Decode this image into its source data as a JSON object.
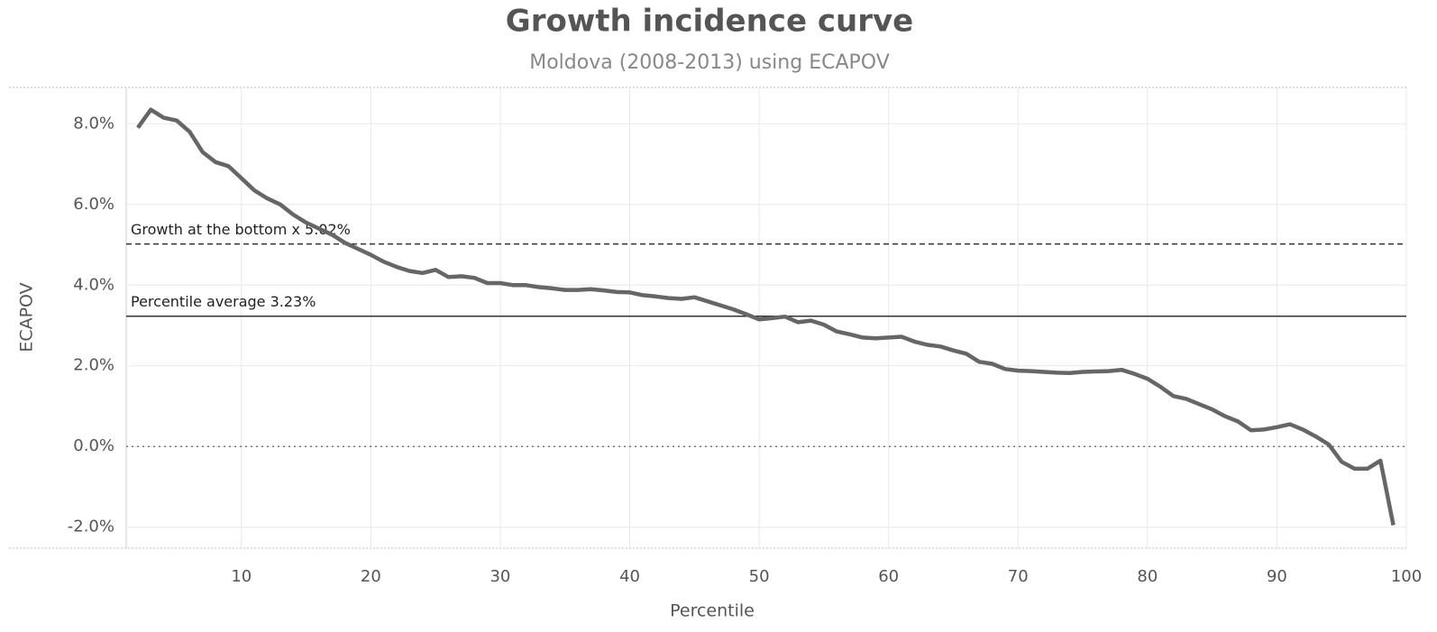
{
  "chart_data": {
    "type": "line",
    "title": "Growth incidence curve",
    "subtitle": "Moldova (2008-2013) using ECAPOV",
    "x_label": "Percentile",
    "y_label": "ECAPOV",
    "color": "#666666",
    "grid": true,
    "x": [
      2,
      3,
      4,
      5,
      6,
      7,
      8,
      9,
      10,
      11,
      12,
      13,
      14,
      15,
      16,
      17,
      18,
      19,
      20,
      21,
      22,
      23,
      24,
      25,
      26,
      27,
      28,
      29,
      30,
      31,
      32,
      33,
      34,
      35,
      36,
      37,
      38,
      39,
      40,
      41,
      42,
      43,
      44,
      45,
      46,
      47,
      48,
      49,
      50,
      51,
      52,
      53,
      54,
      55,
      56,
      57,
      58,
      59,
      60,
      61,
      62,
      63,
      64,
      65,
      66,
      67,
      68,
      69,
      70,
      71,
      72,
      73,
      74,
      75,
      76,
      77,
      78,
      79,
      80,
      81,
      82,
      83,
      84,
      85,
      86,
      87,
      88,
      89,
      90,
      91,
      92,
      93,
      94,
      95,
      96,
      97,
      98,
      99
    ],
    "values": [
      7.9,
      8.35,
      8.15,
      8.08,
      7.8,
      7.3,
      7.05,
      6.95,
      6.65,
      6.35,
      6.15,
      6.0,
      5.75,
      5.55,
      5.4,
      5.25,
      5.05,
      4.9,
      4.75,
      4.58,
      4.45,
      4.35,
      4.3,
      4.38,
      4.2,
      4.22,
      4.18,
      4.05,
      4.05,
      4.0,
      4.0,
      3.95,
      3.92,
      3.88,
      3.88,
      3.9,
      3.87,
      3.83,
      3.82,
      3.75,
      3.72,
      3.68,
      3.66,
      3.7,
      3.6,
      3.5,
      3.4,
      3.28,
      3.15,
      3.18,
      3.22,
      3.08,
      3.12,
      3.02,
      2.85,
      2.78,
      2.7,
      2.68,
      2.7,
      2.72,
      2.6,
      2.52,
      2.48,
      2.38,
      2.3,
      2.1,
      2.05,
      1.92,
      1.88,
      1.87,
      1.85,
      1.83,
      1.82,
      1.85,
      1.86,
      1.87,
      1.9,
      1.8,
      1.68,
      1.48,
      1.25,
      1.18,
      1.05,
      0.92,
      0.75,
      0.62,
      0.4,
      0.42,
      0.48,
      0.55,
      0.42,
      0.25,
      0.05,
      -0.38,
      -0.55,
      -0.55,
      -0.35,
      -1.95
    ],
    "xlim": [
      1.1,
      100
    ],
    "xticks": [
      10,
      20,
      30,
      40,
      50,
      60,
      70,
      80,
      90,
      100
    ],
    "ylim": [
      -2.52,
      8.9
    ],
    "yticks": [
      {
        "value": -2,
        "label": "-2.0%"
      },
      {
        "value": 0,
        "label": "0.0%"
      },
      {
        "value": 2,
        "label": "2.0%"
      },
      {
        "value": 4,
        "label": "4.0%"
      },
      {
        "value": 6,
        "label": "6.0%"
      },
      {
        "value": 8,
        "label": "8.0%"
      }
    ],
    "reference_lines": [
      {
        "value": 5.02,
        "label": "Growth at the bottom x 5.02%",
        "style": "dashed"
      },
      {
        "value": 3.23,
        "label": "Percentile average 3.23%",
        "style": "solid"
      },
      {
        "value": 0,
        "style": "dotted"
      }
    ]
  }
}
